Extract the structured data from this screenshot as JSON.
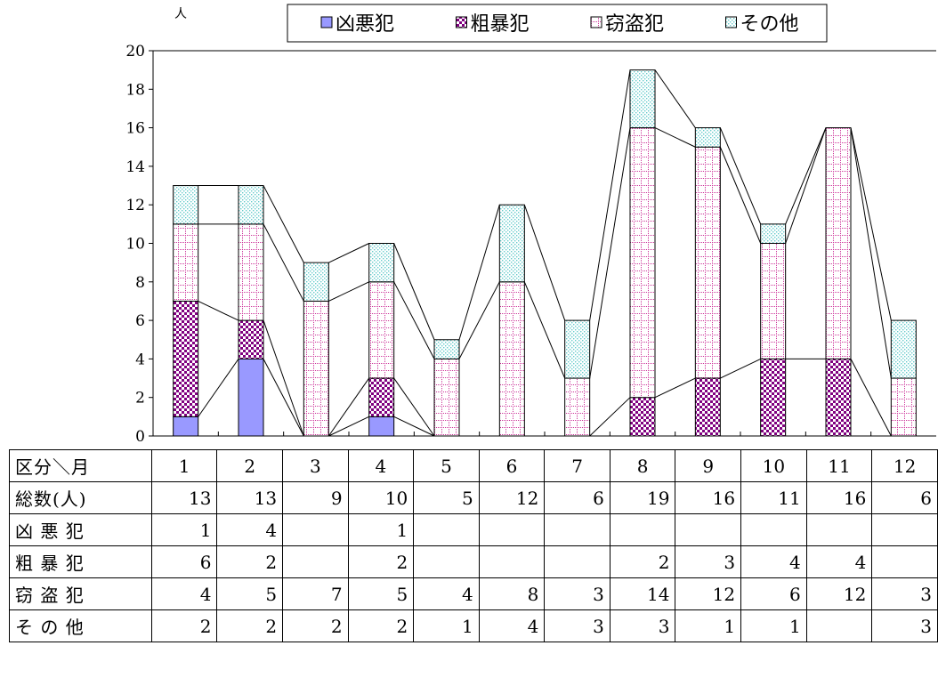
{
  "chart_data": {
    "type": "bar",
    "stacked": true,
    "y_unit": "人",
    "ylim": [
      0,
      20
    ],
    "yticks": [
      0,
      2,
      4,
      6,
      8,
      10,
      12,
      14,
      16,
      18,
      20
    ],
    "categories": [
      "1",
      "2",
      "3",
      "4",
      "5",
      "6",
      "7",
      "8",
      "9",
      "10",
      "11",
      "12"
    ],
    "legend_position": "top",
    "grid": false,
    "series": [
      {
        "name": "凶悪犯",
        "values": [
          1,
          4,
          0,
          1,
          0,
          0,
          0,
          0,
          0,
          0,
          0,
          0
        ],
        "color": "#9999ff",
        "pattern": "solid"
      },
      {
        "name": "粗暴犯",
        "values": [
          6,
          2,
          0,
          2,
          0,
          0,
          0,
          2,
          3,
          4,
          4,
          0
        ],
        "color": "#800080",
        "pattern": "checker"
      },
      {
        "name": "窃盗犯",
        "values": [
          4,
          5,
          7,
          5,
          4,
          8,
          3,
          14,
          12,
          6,
          12,
          3
        ],
        "color": "#cc3399",
        "pattern": "dotted-grid"
      },
      {
        "name": "その他",
        "values": [
          2,
          2,
          2,
          2,
          1,
          4,
          3,
          3,
          1,
          1,
          0,
          3
        ],
        "color": "#66cccc",
        "pattern": "dots"
      }
    ]
  },
  "table": {
    "header_label": "区分＼月",
    "months": [
      "1",
      "2",
      "3",
      "4",
      "5",
      "6",
      "7",
      "8",
      "9",
      "10",
      "11",
      "12"
    ],
    "rows": [
      {
        "label": "総数(人)",
        "values": [
          "13",
          "13",
          "9",
          "10",
          "5",
          "12",
          "6",
          "19",
          "16",
          "11",
          "16",
          "6"
        ]
      },
      {
        "label": "凶 悪 犯",
        "values": [
          "1",
          "4",
          "",
          "1",
          "",
          "",
          "",
          "",
          "",
          "",
          "",
          ""
        ]
      },
      {
        "label": "粗 暴 犯",
        "values": [
          "6",
          "2",
          "",
          "2",
          "",
          "",
          "",
          "2",
          "3",
          "4",
          "4",
          ""
        ]
      },
      {
        "label": "窃 盗 犯",
        "values": [
          "4",
          "5",
          "7",
          "5",
          "4",
          "8",
          "3",
          "14",
          "12",
          "6",
          "12",
          "3"
        ]
      },
      {
        "label": "そ の 他",
        "values": [
          "2",
          "2",
          "2",
          "2",
          "1",
          "4",
          "3",
          "3",
          "1",
          "1",
          "",
          "3"
        ]
      }
    ]
  }
}
